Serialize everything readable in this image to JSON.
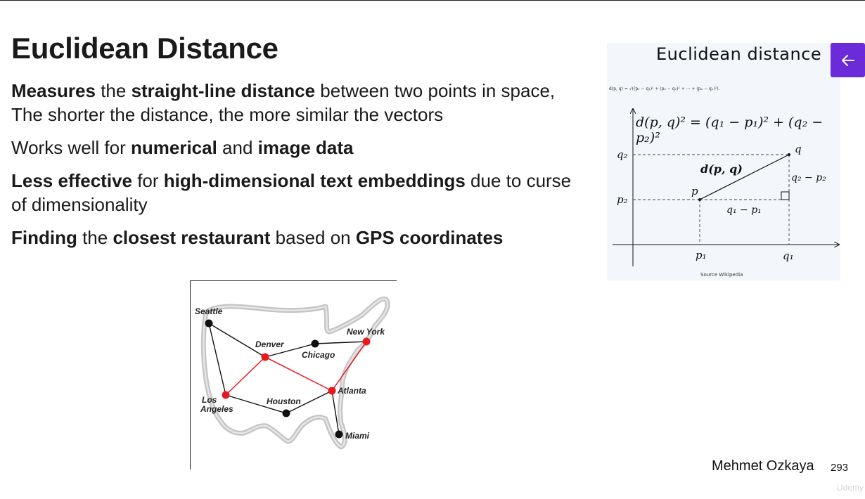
{
  "slide": {
    "title": "Euclidean Distance",
    "bullets": [
      {
        "p0": "Measures",
        "p1": " the ",
        "p2": "straight-line distance",
        "p3": " between two points in space, The shorter the distance, the more similar the vectors"
      },
      {
        "p0": "Works well for ",
        "p1": "numerical",
        "p2": " and ",
        "p3": "image data"
      },
      {
        "p0": "Less effective",
        "p1": " for ",
        "p2": "high-dimensional text embeddings",
        "p3": " due to curse of dimensionality"
      },
      {
        "p0": "Finding",
        "p1": " the ",
        "p2": "closest restaurant",
        "p3": " based on ",
        "p4": "GPS coordinates"
      }
    ]
  },
  "map": {
    "cities": [
      "Seattle",
      "Denver",
      "Chicago",
      "New York",
      "Los Angeles",
      "Houston",
      "Atlanta",
      "Miami"
    ],
    "los_line1": "Los",
    "los_line2": "Angeles",
    "route_color": "#e8181f",
    "edge_color": "#111111"
  },
  "figure": {
    "title": "Euclidean distance",
    "tiny_formula": "d(p, q) = √((p₁ − q₁)² + (p₂ − q₂)² + ⋯ + (pₙ − qₙ)²).",
    "main_formula": "d(p, q)² = (q₁ − p₁)² + (q₂ − p₂)²",
    "labels": {
      "q2": "q₂",
      "p2": "p₂",
      "p1": "p₁",
      "q1": "q₁",
      "p": "p",
      "q": "q",
      "dpq": "d(p, q)",
      "dy": "q₂ − p₂",
      "dx": "q₁ − p₁"
    },
    "source": "Source Wikipedia"
  },
  "footer": {
    "author": "Mehmet Ozkaya",
    "page": "293",
    "watermark": "Udemy"
  },
  "accent_color": "#6c2bd9",
  "icons": {
    "back": "arrow-left-icon"
  }
}
